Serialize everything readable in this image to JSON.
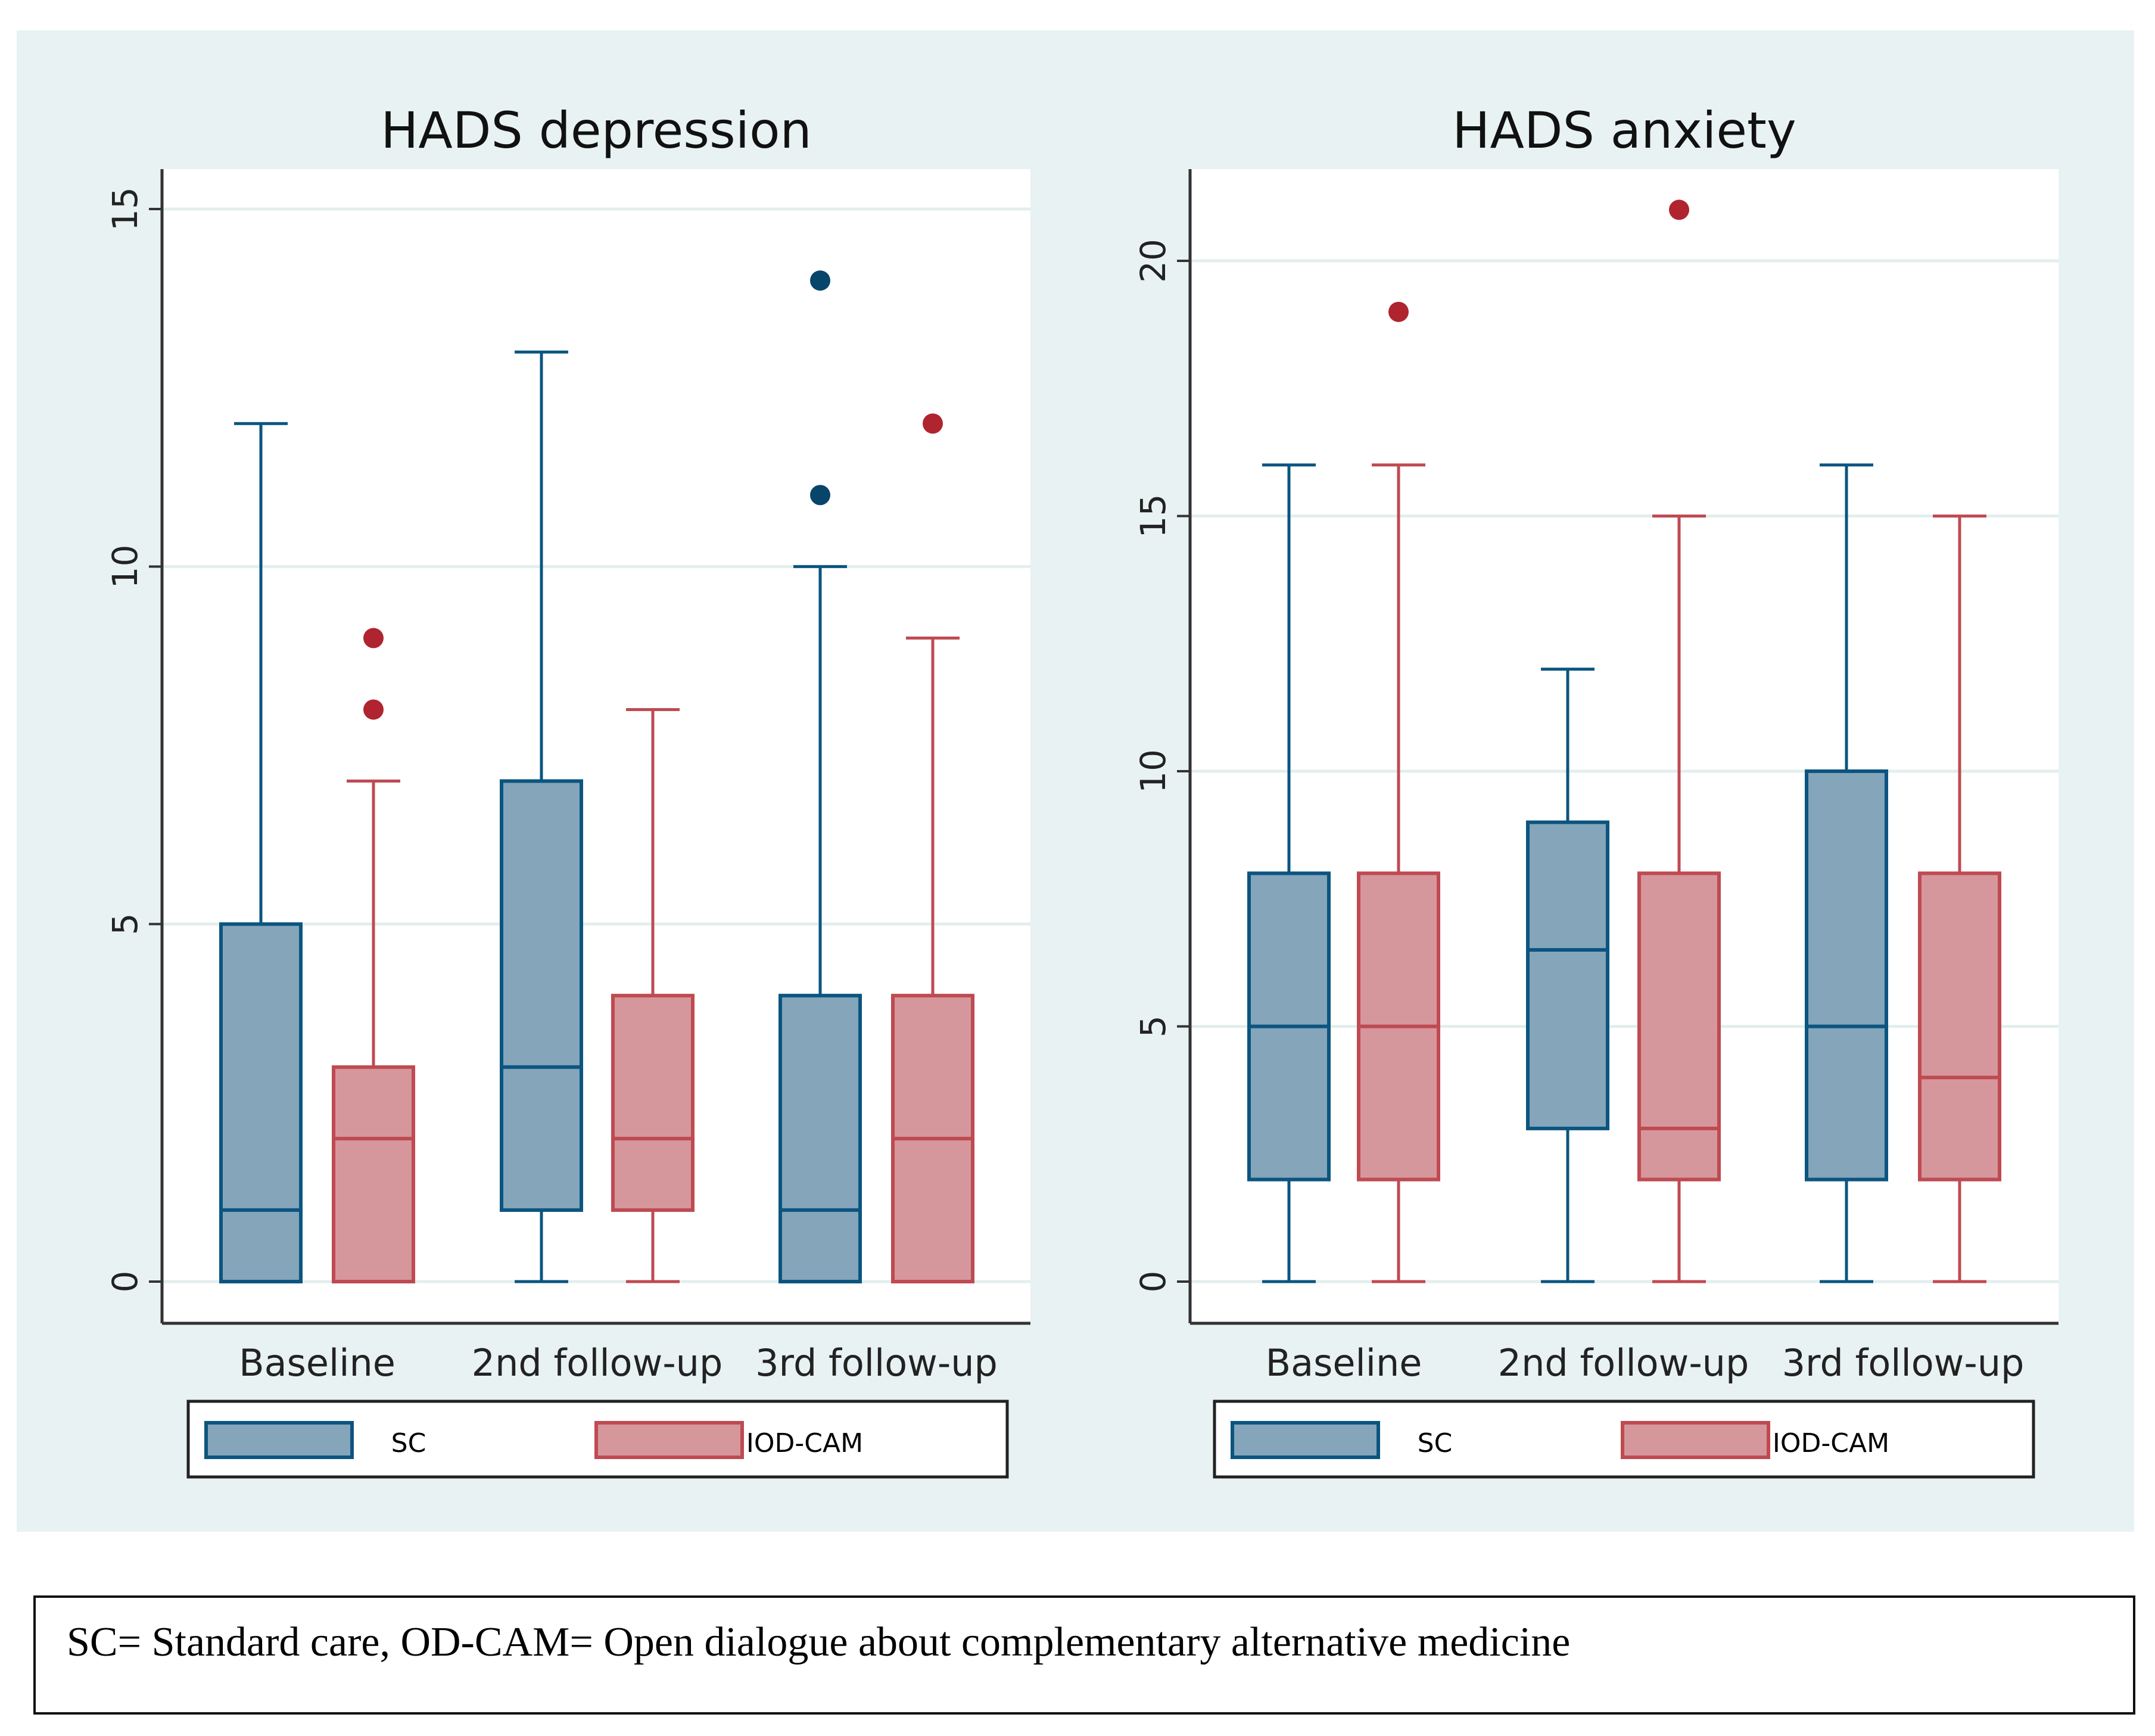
{
  "colors": {
    "background": "#e8f2f2",
    "sc_fill": "#84a5ba",
    "sc_line": "#0b5580",
    "iod_fill": "#d6979c",
    "iod_line": "#bf4a52",
    "iod_outlier": "#b0242f",
    "sc_outlier": "#08456b"
  },
  "legend": [
    "SC",
    "IOD-CAM"
  ],
  "caption": "SC= Standard care, OD-CAM= Open dialogue about complementary alternative medicine",
  "chart_data": [
    {
      "type": "box",
      "title": "HADS depression",
      "categories": [
        "Baseline",
        "2nd follow-up",
        "3rd follow-up"
      ],
      "ylim": [
        0,
        15
      ],
      "yticks": [
        0,
        5,
        10,
        15
      ],
      "grid": true,
      "legend_placement": "bottom",
      "series": [
        {
          "name": "SC",
          "boxes": [
            {
              "min": 0,
              "q1": 0,
              "median": 1,
              "q3": 5,
              "max": 12,
              "outliers": []
            },
            {
              "min": 0,
              "q1": 1,
              "median": 3,
              "q3": 7,
              "max": 13,
              "outliers": []
            },
            {
              "min": 0,
              "q1": 0,
              "median": 1,
              "q3": 4,
              "max": 10,
              "outliers": [
                11,
                14
              ]
            }
          ]
        },
        {
          "name": "IOD-CAM",
          "boxes": [
            {
              "min": 0,
              "q1": 0,
              "median": 2,
              "q3": 3,
              "max": 7,
              "outliers": [
                8,
                9
              ]
            },
            {
              "min": 0,
              "q1": 1,
              "median": 2,
              "q3": 4,
              "max": 8,
              "outliers": []
            },
            {
              "min": 0,
              "q1": 0,
              "median": 2,
              "q3": 4,
              "max": 9,
              "outliers": [
                12
              ]
            }
          ]
        }
      ]
    },
    {
      "type": "box",
      "title": "HADS anxiety",
      "categories": [
        "Baseline",
        "2nd follow-up",
        "3rd follow-up"
      ],
      "ylim": [
        0,
        20
      ],
      "yticks": [
        0,
        5,
        10,
        15,
        20
      ],
      "grid": true,
      "legend_placement": "bottom",
      "series": [
        {
          "name": "SC",
          "boxes": [
            {
              "min": 0,
              "q1": 2,
              "median": 5,
              "q3": 8,
              "max": 16,
              "outliers": []
            },
            {
              "min": 0,
              "q1": 3,
              "median": 6.5,
              "q3": 9,
              "max": 12,
              "outliers": []
            },
            {
              "min": 0,
              "q1": 2,
              "median": 5,
              "q3": 10,
              "max": 16,
              "outliers": []
            }
          ]
        },
        {
          "name": "IOD-CAM",
          "boxes": [
            {
              "min": 0,
              "q1": 2,
              "median": 5,
              "q3": 8,
              "max": 16,
              "outliers": [
                19
              ]
            },
            {
              "min": 0,
              "q1": 2,
              "median": 3,
              "q3": 8,
              "max": 15,
              "outliers": [
                21
              ]
            },
            {
              "min": 0,
              "q1": 2,
              "median": 4,
              "q3": 8,
              "max": 15,
              "outliers": []
            }
          ]
        }
      ]
    }
  ]
}
